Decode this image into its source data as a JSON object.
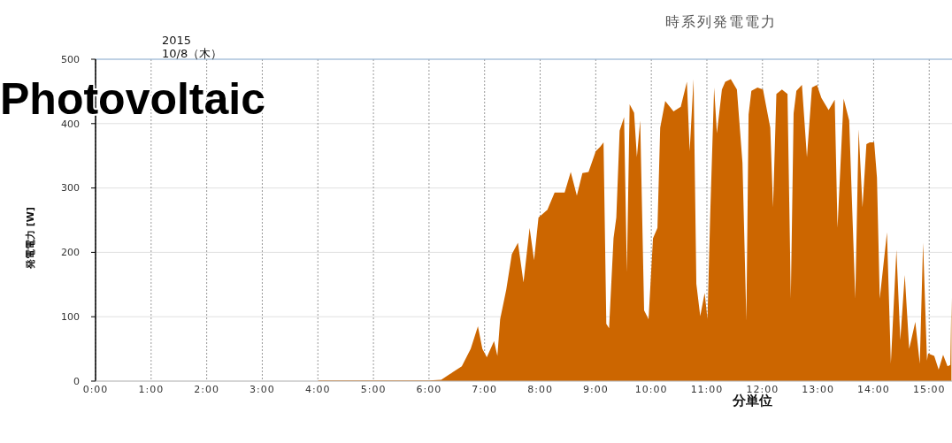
{
  "chart_data": {
    "type": "area",
    "title": "時系列発電電力",
    "xlabel": "分単位",
    "ylabel": "発電電力 [W]",
    "annotations": [
      "2015\n10/8（木）",
      "Photovoltaic"
    ],
    "series": [
      {
        "color": "#cc6600",
        "x": [
          0,
          4,
          4.01,
          6,
          6.22,
          6.43,
          6.59,
          6.75,
          6.88,
          6.96,
          7.04,
          7.17,
          7.23,
          7.28,
          7.39,
          7.49,
          7.6,
          7.7,
          7.81,
          7.89,
          7.97,
          8.13,
          8.26,
          8.44,
          8.55,
          8.66,
          8.76,
          8.87,
          9.0,
          9.08,
          9.14,
          9.19,
          9.24,
          9.32,
          9.37,
          9.43,
          9.51,
          9.56,
          9.61,
          9.69,
          9.74,
          9.8,
          9.87,
          9.95,
          10.03,
          10.11,
          10.16,
          10.25,
          10.4,
          10.53,
          10.64,
          10.69,
          10.76,
          10.81,
          10.88,
          10.96,
          11.01,
          11.06,
          11.13,
          11.18,
          11.27,
          11.33,
          11.43,
          11.54,
          11.64,
          11.71,
          11.75,
          11.8,
          11.91,
          12.01,
          12.06,
          12.14,
          12.19,
          12.25,
          12.35,
          12.45,
          12.51,
          12.56,
          12.61,
          12.71,
          12.8,
          12.89,
          12.98,
          13.06,
          13.19,
          13.3,
          13.35,
          13.46,
          13.56,
          13.67,
          13.73,
          13.8,
          13.87,
          13.93,
          14.01,
          14.06,
          14.11,
          14.24,
          14.31,
          14.41,
          14.48,
          14.56,
          14.64,
          14.75,
          14.83,
          14.89,
          14.96,
          14.98,
          15.09,
          15.17,
          15.25,
          15.33,
          15.38,
          15.4
        ],
        "values": [
          0,
          0,
          1,
          1,
          2,
          14,
          23,
          50,
          85,
          50,
          37,
          62,
          39,
          96,
          142,
          197,
          215,
          153,
          238,
          188,
          254,
          266,
          293,
          293,
          325,
          288,
          323,
          325,
          357,
          364,
          371,
          89,
          82,
          222,
          254,
          389,
          410,
          169,
          430,
          417,
          348,
          405,
          110,
          96,
          222,
          238,
          394,
          435,
          419,
          426,
          465,
          357,
          469,
          151,
          101,
          137,
          96,
          259,
          456,
          385,
          453,
          465,
          469,
          453,
          339,
          94,
          414,
          451,
          456,
          453,
          430,
          394,
          270,
          446,
          453,
          446,
          128,
          416,
          451,
          460,
          348,
          456,
          460,
          440,
          421,
          437,
          238,
          439,
          405,
          128,
          391,
          270,
          368,
          371,
          371,
          316,
          128,
          231,
          27,
          204,
          64,
          165,
          50,
          92,
          27,
          215,
          32,
          43,
          39,
          18,
          41,
          23,
          25,
          130
        ]
      }
    ],
    "xlim": [
      0,
      15.41
    ],
    "xticks": [
      {
        "value": 0,
        "label": "0:00"
      },
      {
        "value": 1,
        "label": "1:00"
      },
      {
        "value": 2,
        "label": "2:00"
      },
      {
        "value": 3,
        "label": "3:00"
      },
      {
        "value": 4,
        "label": "4:00"
      },
      {
        "value": 5,
        "label": "5:00"
      },
      {
        "value": 6,
        "label": "6:00"
      },
      {
        "value": 7,
        "label": "7:00"
      },
      {
        "value": 8,
        "label": "8:00"
      },
      {
        "value": 9,
        "label": "9:00"
      },
      {
        "value": 10,
        "label": "10:00"
      },
      {
        "value": 11,
        "label": "11:00"
      },
      {
        "value": 12,
        "label": "12:00"
      },
      {
        "value": 13,
        "label": "13:00"
      },
      {
        "value": 14,
        "label": "14:00"
      },
      {
        "value": 15,
        "label": "15:00"
      }
    ],
    "ylim": [
      0,
      500
    ],
    "yticks": [
      0,
      100,
      200,
      300,
      400,
      500
    ],
    "grid": true
  }
}
